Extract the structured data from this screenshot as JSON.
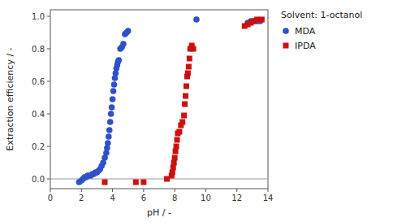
{
  "chart_data": {
    "type": "scatter",
    "xlabel": "pH / -",
    "ylabel": "Extraction efficiency / -",
    "legend_title": "Solvent: 1-octanol",
    "legend": "right",
    "grid": false,
    "xlim": [
      0,
      14
    ],
    "ylim": [
      -0.06,
      1.04
    ],
    "xticks": [
      0,
      2,
      4,
      6,
      8,
      10,
      12,
      14
    ],
    "yticks": [
      {
        "value": 0.0,
        "label": "0.0"
      },
      0.2,
      0.4,
      0.6,
      0.8,
      {
        "value": 1.0,
        "label": "1.0"
      }
    ],
    "hline": {
      "y": 0.0,
      "color": "#999999"
    },
    "series": [
      {
        "name": "MDA",
        "color": "#3050c8",
        "marker": "circle",
        "x": [
          1.85,
          2.0,
          2.1,
          2.2,
          2.3,
          2.4,
          2.5,
          2.6,
          2.7,
          2.8,
          2.9,
          3.0,
          3.1,
          3.2,
          3.3,
          3.4,
          3.5,
          3.6,
          3.65,
          3.7,
          3.75,
          3.8,
          3.85,
          3.9,
          3.95,
          4.0,
          4.05,
          4.1,
          4.15,
          4.2,
          4.25,
          4.3,
          4.35,
          4.4,
          4.5,
          4.6,
          4.7,
          4.8,
          4.9,
          5.0,
          9.4,
          12.7,
          12.9,
          13.1,
          13.3,
          13.5
        ],
        "values": [
          -0.02,
          -0.01,
          0.0,
          0.01,
          0.01,
          0.02,
          0.02,
          0.02,
          0.03,
          0.03,
          0.04,
          0.04,
          0.05,
          0.06,
          0.08,
          0.1,
          0.13,
          0.16,
          0.19,
          0.22,
          0.26,
          0.3,
          0.35,
          0.4,
          0.44,
          0.49,
          0.54,
          0.58,
          0.62,
          0.65,
          0.68,
          0.7,
          0.72,
          0.73,
          0.8,
          0.81,
          0.83,
          0.89,
          0.9,
          0.91,
          0.98,
          0.96,
          0.97,
          0.97,
          0.97,
          0.97
        ]
      },
      {
        "name": "IPDA",
        "color": "#cc1010",
        "marker": "square",
        "x": [
          3.5,
          5.5,
          6.0,
          7.5,
          7.8,
          7.85,
          7.9,
          7.95,
          8.0,
          8.05,
          8.1,
          8.15,
          8.2,
          8.3,
          8.4,
          8.5,
          8.6,
          8.65,
          8.7,
          8.75,
          8.8,
          8.85,
          8.9,
          8.95,
          9.0,
          9.1,
          9.2,
          12.5,
          12.7,
          12.9,
          13.1,
          13.3,
          13.6
        ],
        "values": [
          -0.02,
          -0.02,
          -0.02,
          0.0,
          0.02,
          0.04,
          0.07,
          0.1,
          0.13,
          0.17,
          0.2,
          0.24,
          0.28,
          0.29,
          0.33,
          0.35,
          0.39,
          0.46,
          0.51,
          0.57,
          0.63,
          0.65,
          0.69,
          0.74,
          0.8,
          0.82,
          0.8,
          0.94,
          0.95,
          0.96,
          0.97,
          0.98,
          0.98
        ]
      }
    ]
  }
}
